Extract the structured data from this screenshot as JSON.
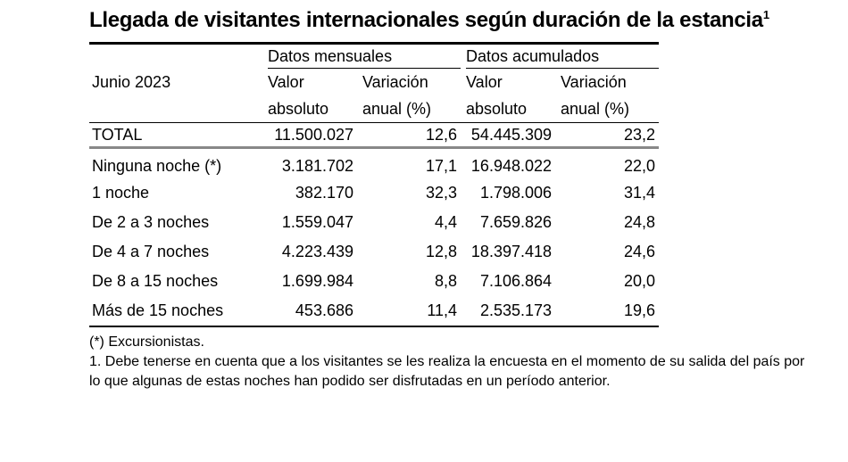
{
  "title": "Llegada de visitantes internacionales según duración de la estancia",
  "title_footnote_mark": "1",
  "header": {
    "period": "Junio 2023",
    "group_monthly": "Datos mensuales",
    "group_cumulative": "Datos acumulados",
    "col_abs_1": "Valor",
    "col_abs_2": "absoluto",
    "col_var_1": "Variación",
    "col_var_2": "anual (%)"
  },
  "total": {
    "label": "TOTAL",
    "m_abs": "11.500.027",
    "m_var": "12,6",
    "c_abs": "54.445.309",
    "c_var": "23,2"
  },
  "rows": [
    {
      "label": "Ninguna noche (*)",
      "m_abs": "3.181.702",
      "m_var": "17,1",
      "c_abs": "16.948.022",
      "c_var": "22,0"
    },
    {
      "label": "1 noche",
      "m_abs": "382.170",
      "m_var": "32,3",
      "c_abs": "1.798.006",
      "c_var": "31,4"
    },
    {
      "label": "De 2 a 3 noches",
      "m_abs": "1.559.047",
      "m_var": "4,4",
      "c_abs": "7.659.826",
      "c_var": "24,8"
    },
    {
      "label": "De 4 a 7 noches",
      "m_abs": "4.223.439",
      "m_var": "12,8",
      "c_abs": "18.397.418",
      "c_var": "24,6"
    },
    {
      "label": "De 8 a 15 noches",
      "m_abs": "1.699.984",
      "m_var": "8,8",
      "c_abs": "7.106.864",
      "c_var": "20,0"
    },
    {
      "label": "Más de 15 noches",
      "m_abs": "453.686",
      "m_var": "11,4",
      "c_abs": "2.535.173",
      "c_var": "19,6"
    }
  ],
  "notes": {
    "asterisk": "(*) Excursionistas.",
    "note1_line1": "1. Debe tenerse en cuenta que a los visitantes se les realiza la encuesta en el momento de su salida del país por",
    "note1_line2": "lo que algunas de estas noches han podido ser disfrutadas en un período anterior."
  }
}
